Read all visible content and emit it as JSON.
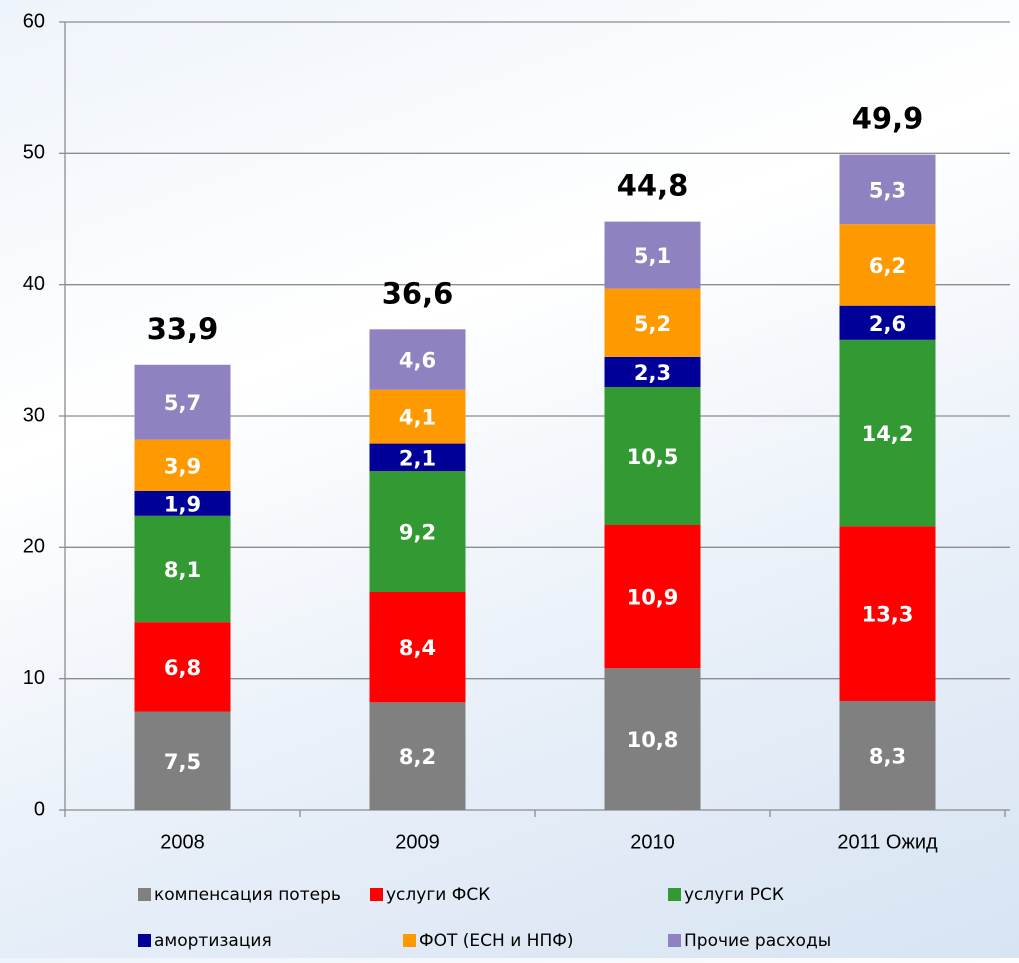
{
  "chart_data": {
    "type": "stacked_bar",
    "categories": [
      "2008",
      "2009",
      "2010",
      "2011 Ожид"
    ],
    "series": [
      {
        "name": "компенсация потерь",
        "color": "#808080",
        "values": [
          7.5,
          8.2,
          10.8,
          8.3
        ],
        "value_labels": [
          "7,5",
          "8,2",
          "10,8",
          "8,3"
        ]
      },
      {
        "name": "услуги ФСК",
        "color": "#ff0000",
        "values": [
          6.8,
          8.4,
          10.9,
          13.3
        ],
        "value_labels": [
          "6,8",
          "8,4",
          "10,9",
          "13,3"
        ]
      },
      {
        "name": "услуги РСК",
        "color": "#339933",
        "values": [
          8.1,
          9.2,
          10.5,
          14.2
        ],
        "value_labels": [
          "8,1",
          "9,2",
          "10,5",
          "14,2"
        ]
      },
      {
        "name": "амортизация",
        "color": "#000099",
        "values": [
          1.9,
          2.1,
          2.3,
          2.6
        ],
        "value_labels": [
          "1,9",
          "2,1",
          "2,3",
          "2,6"
        ]
      },
      {
        "name": "ФОТ (ЕСН и НПФ)",
        "color": "#ff9900",
        "values": [
          3.9,
          4.1,
          5.2,
          6.2
        ],
        "value_labels": [
          "3,9",
          "4,1",
          "5,2",
          "6,2"
        ]
      },
      {
        "name": "Прочие расходы",
        "color": "#9081c0",
        "values": [
          5.7,
          4.6,
          5.1,
          5.3
        ],
        "value_labels": [
          "5,7",
          "4,6",
          "5,1",
          "5,3"
        ]
      }
    ],
    "totals": [
      33.9,
      36.6,
      44.8,
      49.9
    ],
    "total_labels": [
      "33,9",
      "36,6",
      "44,8",
      "49,9"
    ],
    "ylim": [
      0,
      60
    ],
    "yticks": [
      0,
      10,
      20,
      30,
      40,
      50,
      60
    ],
    "grid": true
  }
}
